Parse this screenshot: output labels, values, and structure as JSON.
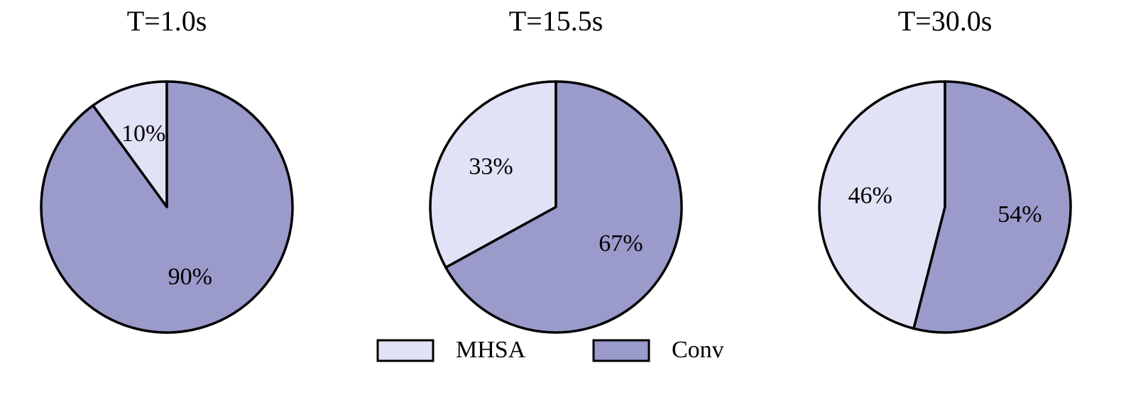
{
  "chart_data": [
    {
      "type": "pie",
      "title": "T=1.0s",
      "values": [
        10,
        90
      ],
      "value_labels": [
        "10%",
        "90%"
      ]
    },
    {
      "type": "pie",
      "title": "T=15.5s",
      "values": [
        33,
        67
      ],
      "value_labels": [
        "33%",
        "67%"
      ]
    },
    {
      "type": "pie",
      "title": "T=30.0s",
      "values": [
        46,
        54
      ],
      "value_labels": [
        "46%",
        "54%"
      ]
    }
  ],
  "legend": {
    "entries": [
      "MHSA",
      "Conv"
    ],
    "colors": [
      "#e2e2f6",
      "#9a9acb"
    ]
  }
}
